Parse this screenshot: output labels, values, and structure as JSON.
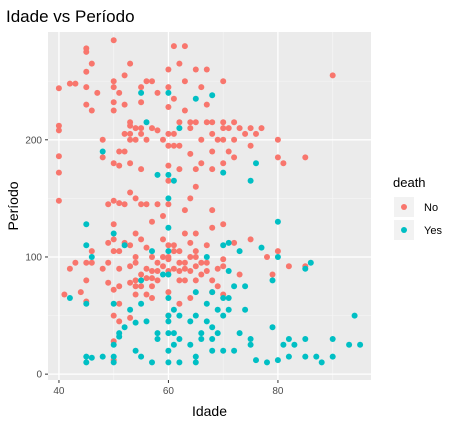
{
  "chart_data": {
    "type": "scatter",
    "title": "Idade vs Período",
    "xlabel": "Idade",
    "ylabel": "Período",
    "xlim": [
      38,
      97
    ],
    "ylim": [
      -5,
      292
    ],
    "x_ticks": [
      40,
      60,
      80
    ],
    "y_ticks": [
      0,
      100,
      200
    ],
    "grid": true,
    "legend": {
      "title": "death",
      "position": "right"
    },
    "series": [
      {
        "name": "No",
        "color": "#F8766D",
        "points": [
          [
            40,
            244
          ],
          [
            40,
            212
          ],
          [
            40,
            208
          ],
          [
            40,
            186
          ],
          [
            40,
            172
          ],
          [
            40,
            148
          ],
          [
            41,
            68
          ],
          [
            42,
            248
          ],
          [
            42,
            90
          ],
          [
            43,
            248
          ],
          [
            43,
            95
          ],
          [
            44,
            70
          ],
          [
            45,
            278
          ],
          [
            45,
            275
          ],
          [
            45,
            258
          ],
          [
            45,
            245
          ],
          [
            45,
            230
          ],
          [
            45,
            95
          ],
          [
            45,
            80
          ],
          [
            45,
            62
          ],
          [
            46,
            265
          ],
          [
            46,
            225
          ],
          [
            46,
            105
          ],
          [
            46,
            95
          ],
          [
            47,
            240
          ],
          [
            48,
            200
          ],
          [
            48,
            185
          ],
          [
            48,
            90
          ],
          [
            49,
            145
          ],
          [
            49,
            112
          ],
          [
            49,
            95
          ],
          [
            49,
            78
          ],
          [
            50,
            285
          ],
          [
            50,
            250
          ],
          [
            50,
            245
          ],
          [
            50,
            232
          ],
          [
            50,
            225
          ],
          [
            50,
            180
          ],
          [
            50,
            148
          ],
          [
            50,
            128
          ],
          [
            50,
            115
          ],
          [
            50,
            105
          ],
          [
            50,
            72
          ],
          [
            50,
            50
          ],
          [
            50,
            28
          ],
          [
            50,
            12
          ],
          [
            51,
            240
          ],
          [
            51,
            190
          ],
          [
            51,
            178
          ],
          [
            51,
            146
          ],
          [
            51,
            105
          ],
          [
            51,
            90
          ],
          [
            51,
            75
          ],
          [
            51,
            60
          ],
          [
            51,
            45
          ],
          [
            52,
            255
          ],
          [
            52,
            230
          ],
          [
            52,
            205
          ],
          [
            52,
            190
          ],
          [
            52,
            145
          ],
          [
            52,
            112
          ],
          [
            53,
            265
          ],
          [
            53,
            215
          ],
          [
            53,
            212
          ],
          [
            53,
            205
          ],
          [
            53,
            200
          ],
          [
            53,
            180
          ],
          [
            53,
            155
          ],
          [
            53,
            110
          ],
          [
            53,
            92
          ],
          [
            53,
            78
          ],
          [
            53,
            48
          ],
          [
            54,
            210
          ],
          [
            54,
            200
          ],
          [
            54,
            150
          ],
          [
            54,
            120
          ],
          [
            54,
            100
          ],
          [
            54,
            95
          ],
          [
            54,
            80
          ],
          [
            54,
            75
          ],
          [
            54,
            68
          ],
          [
            55,
            245
          ],
          [
            55,
            232
          ],
          [
            55,
            210
          ],
          [
            55,
            205
          ],
          [
            55,
            175
          ],
          [
            55,
            145
          ],
          [
            55,
            115
          ],
          [
            55,
            85
          ],
          [
            55,
            75
          ],
          [
            56,
            250
          ],
          [
            56,
            200
          ],
          [
            56,
            145
          ],
          [
            56,
            108
          ],
          [
            56,
            90
          ],
          [
            56,
            82
          ],
          [
            56,
            68
          ],
          [
            57,
            250
          ],
          [
            57,
            210
          ],
          [
            57,
            130
          ],
          [
            57,
            100
          ],
          [
            57,
            88
          ],
          [
            57,
            82
          ],
          [
            57,
            75
          ],
          [
            57,
            65
          ],
          [
            58,
            240
          ],
          [
            58,
            208
          ],
          [
            58,
            145
          ],
          [
            58,
            95
          ],
          [
            58,
            88
          ],
          [
            58,
            80
          ],
          [
            59,
            200
          ],
          [
            59,
            135
          ],
          [
            59,
            115
          ],
          [
            59,
            100
          ],
          [
            59,
            92
          ],
          [
            60,
            260
          ],
          [
            60,
            245
          ],
          [
            60,
            228
          ],
          [
            60,
            205
          ],
          [
            60,
            195
          ],
          [
            60,
            178
          ],
          [
            60,
            165
          ],
          [
            60,
            145
          ],
          [
            60,
            110
          ],
          [
            60,
            100
          ],
          [
            60,
            98
          ],
          [
            60,
            88
          ],
          [
            60,
            70
          ],
          [
            60,
            50
          ],
          [
            61,
            280
          ],
          [
            61,
            235
          ],
          [
            61,
            205
          ],
          [
            61,
            195
          ],
          [
            61,
            110
          ],
          [
            61,
            105
          ],
          [
            61,
            90
          ],
          [
            62,
            265
          ],
          [
            62,
            215
          ],
          [
            62,
            195
          ],
          [
            62,
            175
          ],
          [
            62,
            105
          ],
          [
            62,
            95
          ],
          [
            62,
            88
          ],
          [
            62,
            80
          ],
          [
            62,
            60
          ],
          [
            63,
            280
          ],
          [
            63,
            250
          ],
          [
            63,
            225
          ],
          [
            63,
            140
          ],
          [
            63,
            120
          ],
          [
            63,
            95
          ],
          [
            63,
            90
          ],
          [
            63,
            80
          ],
          [
            64,
            215
          ],
          [
            64,
            210
          ],
          [
            64,
            188
          ],
          [
            64,
            150
          ],
          [
            64,
            112
          ],
          [
            64,
            100
          ],
          [
            64,
            88
          ],
          [
            64,
            65
          ],
          [
            65,
            260
          ],
          [
            65,
            215
          ],
          [
            65,
            175
          ],
          [
            65,
            160
          ],
          [
            65,
            120
          ],
          [
            65,
            105
          ],
          [
            65,
            100
          ],
          [
            65,
            92
          ],
          [
            65,
            80
          ],
          [
            66,
            245
          ],
          [
            66,
            200
          ],
          [
            66,
            180
          ],
          [
            66,
            95
          ],
          [
            66,
            85
          ],
          [
            67,
            260
          ],
          [
            67,
            230
          ],
          [
            67,
            215
          ],
          [
            67,
            110
          ],
          [
            67,
            95
          ],
          [
            67,
            88
          ],
          [
            68,
            215
          ],
          [
            68,
            205
          ],
          [
            68,
            190
          ],
          [
            68,
            175
          ],
          [
            68,
            140
          ],
          [
            68,
            125
          ],
          [
            68,
            80
          ],
          [
            68,
            70
          ],
          [
            69,
            200
          ],
          [
            69,
            90
          ],
          [
            69,
            75
          ],
          [
            70,
            250
          ],
          [
            70,
            215
          ],
          [
            70,
            210
          ],
          [
            70,
            200
          ],
          [
            70,
            180
          ],
          [
            70,
            128
          ],
          [
            70,
            98
          ],
          [
            70,
            92
          ],
          [
            70,
            68
          ],
          [
            71,
            210
          ],
          [
            71,
            190
          ],
          [
            72,
            215
          ],
          [
            72,
            200
          ],
          [
            72,
            185
          ],
          [
            72,
            112
          ],
          [
            73,
            210
          ],
          [
            73,
            85
          ],
          [
            74,
            205
          ],
          [
            75,
            210
          ],
          [
            75,
            195
          ],
          [
            75,
            115
          ],
          [
            76,
            205
          ],
          [
            77,
            210
          ],
          [
            78,
            100
          ],
          [
            79,
            85
          ],
          [
            80,
            200
          ],
          [
            80,
            185
          ],
          [
            80,
            105
          ],
          [
            81,
            180
          ],
          [
            82,
            92
          ],
          [
            85,
            185
          ],
          [
            85,
            92
          ],
          [
            90,
            255
          ]
        ]
      },
      {
        "name": "Yes",
        "color": "#00BFC4",
        "points": [
          [
            42,
            65
          ],
          [
            45,
            128
          ],
          [
            45,
            110
          ],
          [
            45,
            60
          ],
          [
            45,
            15
          ],
          [
            45,
            10
          ],
          [
            46,
            100
          ],
          [
            46,
            14
          ],
          [
            48,
            190
          ],
          [
            48,
            15
          ],
          [
            50,
            120
          ],
          [
            50,
            60
          ],
          [
            50,
            25
          ],
          [
            50,
            15
          ],
          [
            50,
            10
          ],
          [
            51,
            35
          ],
          [
            51,
            32
          ],
          [
            52,
            110
          ],
          [
            52,
            40
          ],
          [
            53,
            55
          ],
          [
            54,
            44
          ],
          [
            54,
            20
          ],
          [
            55,
            240
          ],
          [
            55,
            80
          ],
          [
            55,
            60
          ],
          [
            55,
            15
          ],
          [
            56,
            215
          ],
          [
            56,
            45
          ],
          [
            57,
            105
          ],
          [
            57,
            10
          ],
          [
            58,
            170
          ],
          [
            58,
            35
          ],
          [
            58,
            30
          ],
          [
            59,
            85
          ],
          [
            60,
            240
          ],
          [
            60,
            170
          ],
          [
            60,
            150
          ],
          [
            60,
            125
          ],
          [
            60,
            105
          ],
          [
            60,
            85
          ],
          [
            60,
            65
          ],
          [
            60,
            50
          ],
          [
            60,
            45
          ],
          [
            60,
            35
          ],
          [
            60,
            20
          ],
          [
            60,
            10
          ],
          [
            61,
            165
          ],
          [
            61,
            55
          ],
          [
            61,
            35
          ],
          [
            61,
            25
          ],
          [
            62,
            210
          ],
          [
            62,
            50
          ],
          [
            62,
            30
          ],
          [
            62,
            10
          ],
          [
            64,
            45
          ],
          [
            64,
            25
          ],
          [
            65,
            235
          ],
          [
            65,
            70
          ],
          [
            65,
            50
          ],
          [
            65,
            15
          ],
          [
            65,
            10
          ],
          [
            66,
            35
          ],
          [
            66,
            30
          ],
          [
            67,
            100
          ],
          [
            67,
            60
          ],
          [
            67,
            45
          ],
          [
            68,
            238
          ],
          [
            68,
            70
          ],
          [
            68,
            40
          ],
          [
            68,
            30
          ],
          [
            68,
            20
          ],
          [
            69,
            55
          ],
          [
            69,
            35
          ],
          [
            70,
            172
          ],
          [
            70,
            110
          ],
          [
            70,
            65
          ],
          [
            70,
            50
          ],
          [
            70,
            20
          ],
          [
            71,
            112
          ],
          [
            71,
            88
          ],
          [
            71,
            65
          ],
          [
            71,
            55
          ],
          [
            72,
            75
          ],
          [
            72,
            20
          ],
          [
            73,
            105
          ],
          [
            73,
            35
          ],
          [
            74,
            75
          ],
          [
            74,
            55
          ],
          [
            75,
            165
          ],
          [
            75,
            30
          ],
          [
            75,
            25
          ],
          [
            76,
            180
          ],
          [
            76,
            12
          ],
          [
            77,
            108
          ],
          [
            78,
            10
          ],
          [
            79,
            80
          ],
          [
            79,
            40
          ],
          [
            80,
            130
          ],
          [
            80,
            100
          ],
          [
            80,
            12
          ],
          [
            81,
            25
          ],
          [
            82,
            30
          ],
          [
            82,
            15
          ],
          [
            83,
            25
          ],
          [
            85,
            90
          ],
          [
            85,
            30
          ],
          [
            85,
            15
          ],
          [
            86,
            95
          ],
          [
            87,
            15
          ],
          [
            88,
            10
          ],
          [
            90,
            30
          ],
          [
            90,
            15
          ],
          [
            93,
            25
          ],
          [
            94,
            50
          ],
          [
            95,
            25
          ]
        ]
      }
    ]
  }
}
